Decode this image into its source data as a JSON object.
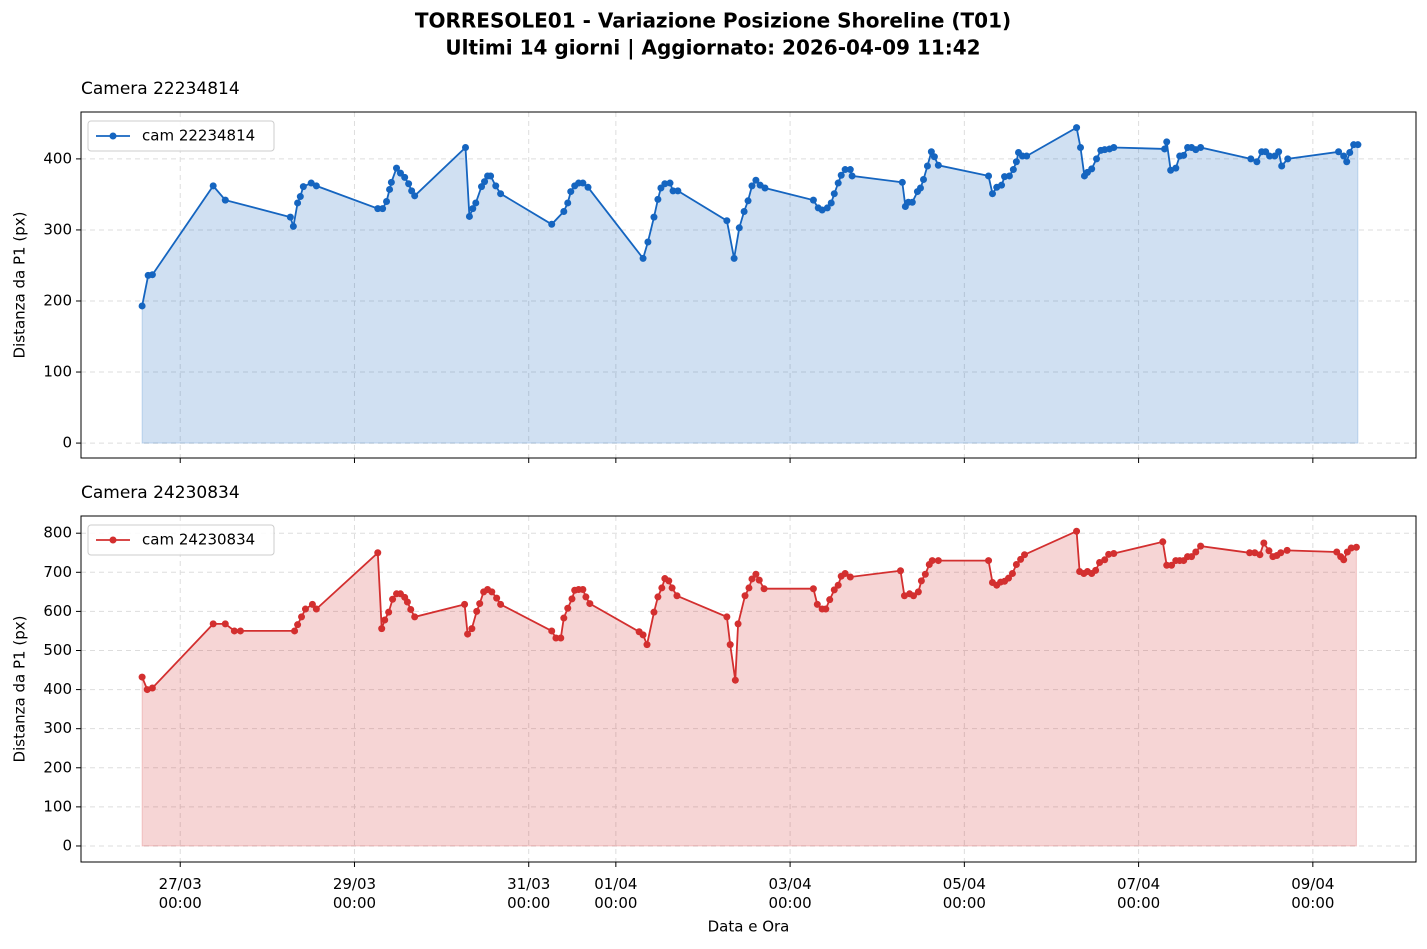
{
  "title": "TORRESOLE01 - Variazione Posizione Shoreline (T01)",
  "subtitle": "Ultimi 14 giorni  |  Aggiornato: 2026-04-09 11:42",
  "chart_data": [
    {
      "type": "line",
      "title": "Camera 22234814",
      "y_label": "Distanza da P1 (px)",
      "grid": true,
      "legend": "upper left",
      "fill": true,
      "ylim": [
        -21,
        466
      ],
      "yticks": [
        0,
        100,
        200,
        300,
        400
      ],
      "x": [
        "26/03 13:30",
        "26/03 15:10",
        "26/03 16:20",
        "27/03 09:05",
        "27/03 12:25",
        "28/03 06:20",
        "28/03 07:10",
        "28/03 08:20",
        "28/03 09:05",
        "28/03 09:55",
        "28/03 12:05",
        "28/03 13:30",
        "29/03 06:25",
        "29/03 07:45",
        "29/03 08:50",
        "29/03 09:40",
        "29/03 10:10",
        "29/03 11:35",
        "29/03 12:40",
        "29/03 13:50",
        "29/03 14:55",
        "29/03 15:45",
        "29/03 16:35",
        "30/03 06:35",
        "30/03 07:40",
        "30/03 08:35",
        "30/03 09:25",
        "30/03 11:00",
        "30/03 11:50",
        "30/03 12:40",
        "30/03 13:30",
        "30/03 14:55",
        "30/03 16:15",
        "31/03 06:20",
        "31/03 09:40",
        "31/03 10:45",
        "31/03 11:35",
        "31/03 12:40",
        "31/03 13:45",
        "31/03 14:55",
        "31/03 16:20",
        "01/04 07:30",
        "01/04 08:50",
        "01/04 10:30",
        "01/04 11:35",
        "01/04 12:25",
        "01/04 13:30",
        "01/04 14:55",
        "01/04 15:45",
        "01/04 17:05",
        "02/04 06:35",
        "02/04 08:35",
        "02/04 10:00",
        "02/04 11:20",
        "02/04 12:25",
        "02/04 13:30",
        "02/04 14:35",
        "02/04 15:45",
        "02/04 17:05",
        "03/04 06:25",
        "03/04 07:45",
        "03/04 08:50",
        "03/04 10:15",
        "03/04 11:20",
        "03/04 12:10",
        "03/04 13:15",
        "03/04 14:05",
        "03/04 15:10",
        "03/04 16:35",
        "03/04 17:05",
        "04/04 06:55",
        "04/04 07:45",
        "04/04 08:35",
        "04/04 09:40",
        "04/04 11:05",
        "04/04 11:55",
        "04/04 12:45",
        "04/04 13:50",
        "04/04 14:55",
        "04/04 15:45",
        "04/04 16:50",
        "05/04 06:40",
        "05/04 07:45",
        "05/04 08:55",
        "05/04 10:15",
        "05/04 11:05",
        "05/04 12:25",
        "05/04 13:30",
        "05/04 14:20",
        "05/04 14:55",
        "05/04 16:00",
        "05/04 17:10",
        "06/04 06:55",
        "06/04 08:00",
        "06/04 09:05",
        "06/04 09:55",
        "06/04 11:05",
        "06/04 12:25",
        "06/04 13:35",
        "06/04 14:40",
        "06/04 16:00",
        "06/04 17:10",
        "07/04 07:10",
        "07/04 07:45",
        "07/04 08:50",
        "07/04 10:15",
        "07/04 11:20",
        "07/04 12:25",
        "07/04 13:30",
        "07/04 14:35",
        "07/04 15:45",
        "07/04 17:05",
        "08/04 06:55",
        "08/04 08:35",
        "08/04 09:55",
        "08/04 11:00",
        "08/04 12:05",
        "08/04 13:30",
        "08/04 14:35",
        "08/04 15:25",
        "08/04 17:05",
        "09/04 07:05",
        "09/04 08:30",
        "09/04 09:20",
        "09/04 10:10",
        "09/04 11:15",
        "09/04 12:25"
      ],
      "series": [
        {
          "name": "cam 22234814",
          "color": "#1565c0",
          "values": [
            193,
            236,
            237,
            362,
            342,
            318,
            305,
            338,
            347,
            361,
            366,
            362,
            330,
            330,
            340,
            357,
            367,
            387,
            380,
            374,
            365,
            355,
            348,
            416,
            319,
            330,
            338,
            361,
            368,
            376,
            376,
            362,
            351,
            308,
            326,
            338,
            354,
            362,
            366,
            366,
            360,
            260,
            283,
            318,
            343,
            359,
            365,
            366,
            355,
            355,
            313,
            260,
            303,
            326,
            341,
            362,
            370,
            363,
            359,
            342,
            331,
            328,
            331,
            338,
            351,
            366,
            377,
            385,
            385,
            376,
            367,
            333,
            339,
            339,
            354,
            359,
            371,
            390,
            410,
            403,
            391,
            376,
            351,
            360,
            363,
            375,
            376,
            385,
            396,
            409,
            404,
            404,
            444,
            416,
            376,
            381,
            386,
            400,
            412,
            413,
            414,
            416,
            414,
            424,
            384,
            387,
            404,
            405,
            416,
            416,
            413,
            416,
            400,
            396,
            410,
            410,
            404,
            404,
            410,
            390,
            400,
            410,
            404,
            396,
            409,
            420,
            420
          ]
        }
      ]
    },
    {
      "type": "line",
      "title": "Camera 24230834",
      "y_label": "Distanza da P1 (px)",
      "x_label": "Data e Ora",
      "grid": true,
      "legend": "upper left",
      "fill": true,
      "ylim": [
        -41,
        844
      ],
      "yticks": [
        0,
        100,
        200,
        300,
        400,
        500,
        600,
        700,
        800
      ],
      "xlim": [
        "25/03 20:40",
        "10/04 04:25"
      ],
      "xticks": [
        "27/03 00:00",
        "29/03 00:00",
        "31/03 00:00",
        "01/04 00:00",
        "03/04 00:00",
        "05/04 00:00",
        "07/04 00:00",
        "09/04 00:00"
      ],
      "x": [
        "26/03 13:30",
        "26/03 14:55",
        "26/03 16:20",
        "27/03 09:05",
        "27/03 12:25",
        "27/03 14:55",
        "27/03 16:35",
        "28/03 07:30",
        "28/03 08:20",
        "28/03 09:25",
        "28/03 10:30",
        "28/03 12:25",
        "28/03 13:30",
        "29/03 06:25",
        "29/03 07:30",
        "29/03 08:20",
        "29/03 09:25",
        "29/03 10:30",
        "29/03 11:35",
        "29/03 12:40",
        "29/03 13:50",
        "29/03 14:35",
        "29/03 15:30",
        "29/03 16:35",
        "30/03 06:20",
        "30/03 07:10",
        "30/03 08:20",
        "30/03 09:40",
        "30/03 10:30",
        "30/03 11:35",
        "30/03 12:40",
        "30/03 13:50",
        "30/03 15:10",
        "30/03 16:15",
        "31/03 06:20",
        "31/03 07:30",
        "31/03 08:50",
        "31/03 09:40",
        "31/03 10:45",
        "31/03 11:55",
        "31/03 12:40",
        "31/03 13:45",
        "31/03 14:55",
        "31/03 15:45",
        "31/03 16:50",
        "01/04 06:25",
        "01/04 07:30",
        "01/04 08:35",
        "01/04 10:30",
        "01/04 11:35",
        "01/04 12:40",
        "01/04 13:30",
        "01/04 14:35",
        "01/04 15:30",
        "01/04 16:50",
        "02/04 06:35",
        "02/04 07:30",
        "02/04 08:55",
        "02/04 09:40",
        "02/04 11:35",
        "02/04 12:40",
        "02/04 13:30",
        "02/04 14:35",
        "02/04 15:30",
        "02/04 16:50",
        "03/04 06:25",
        "03/04 07:30",
        "03/04 08:50",
        "03/04 09:50",
        "03/04 10:55",
        "03/04 12:10",
        "03/04 13:15",
        "03/04 14:05",
        "03/04 15:10",
        "03/04 16:35",
        "04/04 06:25",
        "04/04 07:30",
        "04/04 08:55",
        "04/04 10:00",
        "04/04 11:20",
        "04/04 12:10",
        "04/04 13:15",
        "04/04 14:20",
        "04/04 15:10",
        "04/04 16:50",
        "05/04 06:40",
        "05/04 07:45",
        "05/04 08:55",
        "05/04 10:00",
        "05/04 11:05",
        "05/04 12:10",
        "05/04 13:15",
        "05/04 14:20",
        "05/04 15:30",
        "05/04 16:35",
        "06/04 06:55",
        "06/04 07:45",
        "06/04 08:55",
        "06/04 09:55",
        "06/04 11:05",
        "06/04 12:10",
        "06/04 13:15",
        "06/04 14:40",
        "06/04 15:45",
        "06/04 17:10",
        "07/04 06:40",
        "07/04 07:45",
        "07/04 09:05",
        "07/04 10:15",
        "07/04 11:20",
        "07/04 12:25",
        "07/04 13:30",
        "07/04 14:35",
        "07/04 15:45",
        "07/04 17:05",
        "08/04 06:35",
        "08/04 08:00",
        "08/04 09:25",
        "08/04 10:30",
        "08/04 11:55",
        "08/04 13:00",
        "08/04 14:05",
        "08/04 15:10",
        "08/04 16:55",
        "09/04 06:35",
        "09/04 07:40",
        "09/04 08:30",
        "09/04 09:30",
        "09/04 10:35",
        "09/04 12:00"
      ],
      "series": [
        {
          "name": "cam 24230834",
          "color": "#d32f2f",
          "values": [
            432,
            400,
            404,
            568,
            568,
            550,
            550,
            550,
            566,
            586,
            606,
            618,
            606,
            750,
            556,
            578,
            598,
            631,
            645,
            645,
            636,
            624,
            605,
            586,
            618,
            542,
            556,
            600,
            620,
            650,
            656,
            650,
            634,
            618,
            550,
            532,
            532,
            583,
            608,
            632,
            654,
            656,
            656,
            637,
            620,
            548,
            540,
            515,
            598,
            637,
            660,
            684,
            678,
            660,
            640,
            586,
            515,
            424,
            568,
            640,
            660,
            683,
            695,
            680,
            658,
            658,
            618,
            606,
            606,
            630,
            655,
            667,
            690,
            697,
            688,
            704,
            640,
            645,
            640,
            650,
            678,
            695,
            720,
            730,
            730,
            730,
            674,
            667,
            675,
            677,
            685,
            697,
            720,
            733,
            745,
            805,
            702,
            697,
            702,
            697,
            705,
            725,
            732,
            746,
            748,
            778,
            718,
            718,
            730,
            730,
            730,
            740,
            740,
            752,
            767,
            750,
            750,
            745,
            775,
            755,
            740,
            743,
            750,
            756,
            752,
            740,
            732,
            752,
            762,
            764
          ]
        }
      ]
    }
  ]
}
